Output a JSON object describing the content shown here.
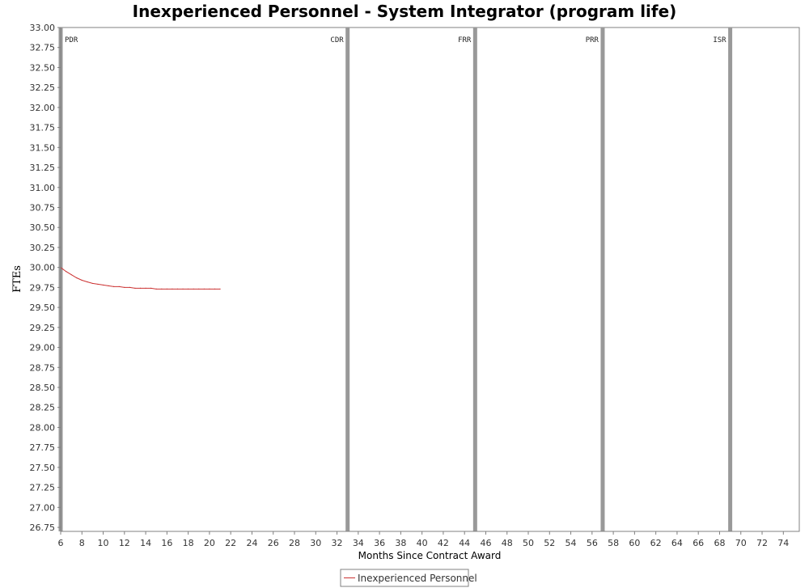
{
  "chart_data": {
    "type": "line",
    "title": "Inexperienced Personnel - System Integrator (program life)",
    "xlabel": "Months Since Contract Award",
    "ylabel": "FTEs",
    "xlim": [
      6,
      75.5
    ],
    "ylim": [
      26.7,
      33.0
    ],
    "x_ticks": [
      6,
      8,
      10,
      12,
      14,
      16,
      18,
      20,
      22,
      24,
      26,
      28,
      30,
      32,
      34,
      36,
      38,
      40,
      42,
      44,
      46,
      48,
      50,
      52,
      54,
      56,
      58,
      60,
      62,
      64,
      66,
      68,
      70,
      72,
      74
    ],
    "y_ticks": [
      26.75,
      27.0,
      27.25,
      27.5,
      27.75,
      28.0,
      28.25,
      28.5,
      28.75,
      29.0,
      29.25,
      29.5,
      29.75,
      30.0,
      30.25,
      30.5,
      30.75,
      31.0,
      31.25,
      31.5,
      31.75,
      32.0,
      32.25,
      32.5,
      32.75,
      33.0
    ],
    "y_tick_decimals": 2,
    "grid": false,
    "legend_position": "bottom-center",
    "milestones": [
      {
        "label": "PDR",
        "x": 6
      },
      {
        "label": "CDR",
        "x": 33
      },
      {
        "label": "FRR",
        "x": 45
      },
      {
        "label": "PRR",
        "x": 57
      },
      {
        "label": "ISR",
        "x": 69
      }
    ],
    "milestone_color": "#999999",
    "series": [
      {
        "name": "Inexperienced Personnel",
        "color": "#cc3333",
        "x": [
          6,
          6.5,
          7,
          7.5,
          8,
          8.5,
          9,
          9.5,
          10,
          10.5,
          11,
          11.5,
          12,
          12.5,
          13,
          13.5,
          14,
          14.5,
          15,
          15.5,
          16,
          16.5,
          17,
          17.5,
          18,
          18.5,
          19,
          19.5,
          20,
          20.5,
          21
        ],
        "y": [
          30.0,
          29.95,
          29.91,
          29.87,
          29.84,
          29.82,
          29.8,
          29.79,
          29.78,
          29.77,
          29.76,
          29.76,
          29.75,
          29.75,
          29.74,
          29.74,
          29.74,
          29.74,
          29.73,
          29.73,
          29.73,
          29.73,
          29.73,
          29.73,
          29.73,
          29.73,
          29.73,
          29.73,
          29.73,
          29.73,
          29.73
        ]
      }
    ]
  }
}
